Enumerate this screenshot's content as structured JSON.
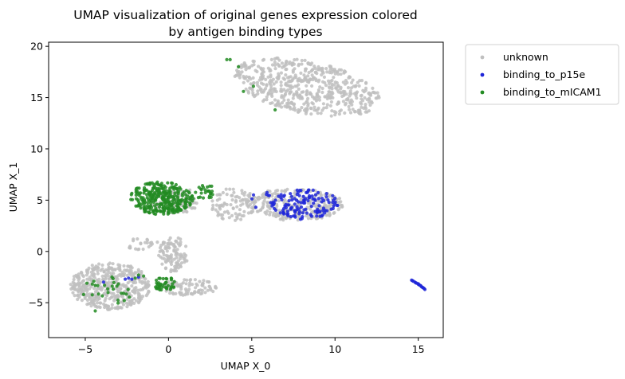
{
  "chart_data": {
    "type": "scatter",
    "title_lines": [
      "UMAP visualization of original genes expression colored",
      "by antigen binding types"
    ],
    "xlabel": "UMAP X_0",
    "ylabel": "UMAP X_1",
    "xlim": [
      -7.2,
      16.5
    ],
    "ylim": [
      -8.4,
      20.4
    ],
    "xticks": [
      -5,
      0,
      5,
      10,
      15
    ],
    "yticks": [
      -5,
      0,
      5,
      10,
      15,
      20
    ],
    "grid": false,
    "legend_position": "outside-upper-right",
    "series": [
      {
        "name": "unknown",
        "color": "#c0c0c0",
        "clusters": [
          {
            "cx": 8.3,
            "cy": 16.0,
            "rx": 4.4,
            "ry": 2.6,
            "n": 560,
            "seed": 11,
            "shape": "upper-blob"
          },
          {
            "cx": 7.6,
            "cy": 4.6,
            "rx": 2.9,
            "ry": 1.6,
            "n": 260,
            "seed": 12,
            "shape": "ellipse"
          },
          {
            "cx": 3.9,
            "cy": 4.6,
            "rx": 1.4,
            "ry": 1.6,
            "n": 90,
            "seed": 13,
            "shape": "ellipse"
          },
          {
            "cx": 0.4,
            "cy": 5.0,
            "rx": 1.5,
            "ry": 1.3,
            "n": 90,
            "seed": 14,
            "shape": "ellipse"
          },
          {
            "cx": -3.5,
            "cy": -3.4,
            "rx": 2.4,
            "ry": 2.3,
            "n": 430,
            "seed": 15,
            "shape": "ellipse"
          },
          {
            "cx": 0.3,
            "cy": -0.3,
            "rx": 0.9,
            "ry": 1.7,
            "n": 110,
            "seed": 16,
            "shape": "ellipse"
          },
          {
            "cx": 1.2,
            "cy": -3.5,
            "rx": 1.7,
            "ry": 0.8,
            "n": 90,
            "seed": 17,
            "shape": "ellipse"
          },
          {
            "cx": -1.6,
            "cy": 0.7,
            "rx": 1.0,
            "ry": 0.6,
            "n": 25,
            "seed": 18,
            "shape": "ellipse"
          }
        ]
      },
      {
        "name": "binding_to_p15e",
        "color": "#1f26d8",
        "clusters": [
          {
            "cx": 8.2,
            "cy": 4.6,
            "rx": 2.0,
            "ry": 1.5,
            "n": 130,
            "seed": 21,
            "shape": "ellipse"
          },
          {
            "cx": 5.6,
            "cy": 4.8,
            "rx": 0.7,
            "ry": 1.1,
            "n": 8,
            "seed": 22,
            "shape": "ellipse"
          }
        ],
        "points": [
          [
            -2.6,
            -2.7
          ],
          [
            -2.4,
            -2.6
          ],
          [
            -2.2,
            -2.7
          ],
          [
            -3.9,
            -3.0
          ],
          [
            -1.8,
            -2.5
          ],
          [
            14.6,
            -2.8
          ],
          [
            14.7,
            -2.9
          ],
          [
            14.8,
            -3.0
          ],
          [
            14.9,
            -3.1
          ],
          [
            15.0,
            -3.2
          ],
          [
            15.05,
            -3.25
          ],
          [
            15.1,
            -3.3
          ],
          [
            15.15,
            -3.35
          ],
          [
            15.2,
            -3.45
          ],
          [
            15.25,
            -3.5
          ],
          [
            15.3,
            -3.55
          ],
          [
            15.35,
            -3.62
          ],
          [
            15.4,
            -3.7
          ],
          [
            14.65,
            -2.85
          ],
          [
            14.85,
            -3.05
          ],
          [
            15.0,
            -3.15
          ]
        ]
      },
      {
        "name": "binding_to_mICAM1",
        "color": "#228b22",
        "clusters": [
          {
            "cx": -0.4,
            "cy": 5.2,
            "rx": 1.9,
            "ry": 1.6,
            "n": 300,
            "seed": 31,
            "shape": "ellipse"
          },
          {
            "cx": 2.2,
            "cy": 5.8,
            "rx": 0.6,
            "ry": 0.8,
            "n": 25,
            "seed": 32,
            "shape": "ellipse"
          },
          {
            "cx": -0.2,
            "cy": -3.2,
            "rx": 0.7,
            "ry": 0.7,
            "n": 40,
            "seed": 33,
            "shape": "ellipse"
          },
          {
            "cx": -3.4,
            "cy": -3.8,
            "rx": 1.6,
            "ry": 1.3,
            "n": 25,
            "seed": 34,
            "shape": "ellipse"
          }
        ],
        "points": [
          [
            3.5,
            18.7
          ],
          [
            3.7,
            18.7
          ],
          [
            4.2,
            18.0
          ],
          [
            4.5,
            15.6
          ],
          [
            5.1,
            16.1
          ],
          [
            6.4,
            13.8
          ],
          [
            -1.5,
            -2.4
          ],
          [
            -1.8,
            -2.3
          ],
          [
            -2.0,
            -2.6
          ],
          [
            -5.1,
            -4.2
          ],
          [
            -4.4,
            -5.8
          ],
          [
            -4.9,
            -3.1
          ]
        ]
      }
    ]
  }
}
